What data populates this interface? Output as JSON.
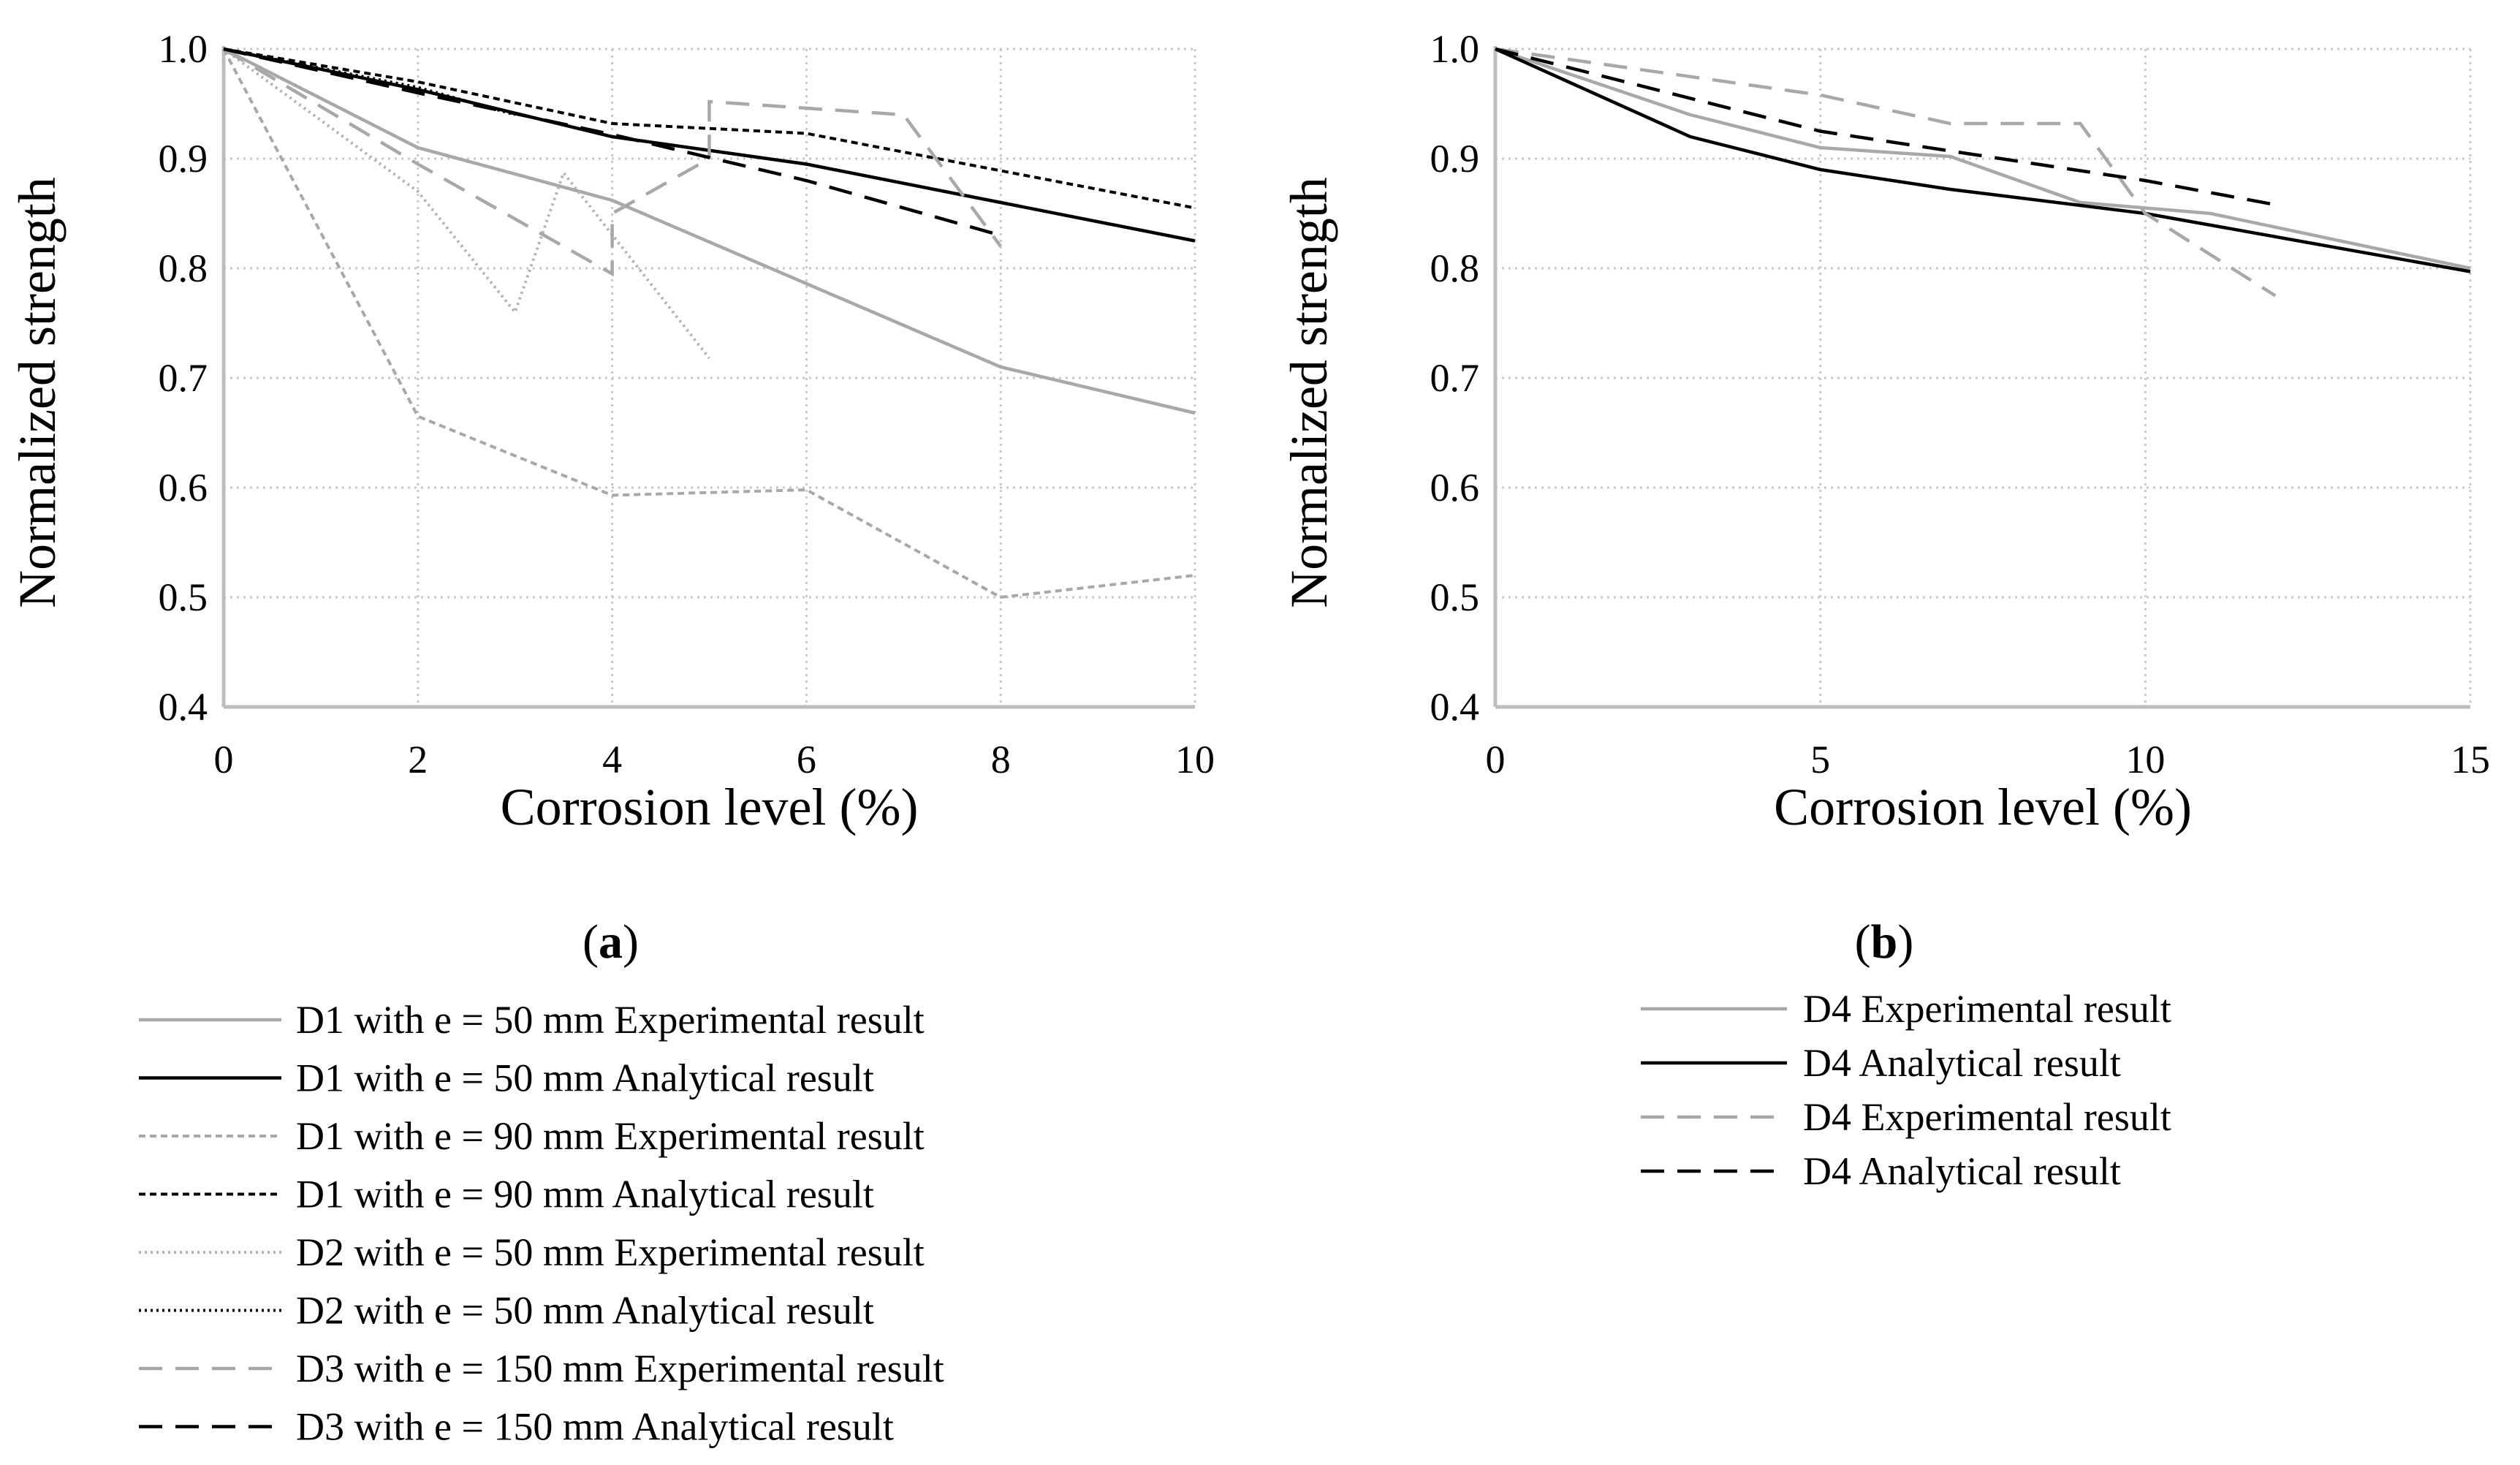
{
  "chart_data": [
    {
      "type": "line",
      "panel_label": "a",
      "xlabel": "Corrosion level (%)",
      "ylabel": "Normalized strength",
      "xlim": [
        0,
        10
      ],
      "ylim": [
        0.4,
        1.0
      ],
      "xticks": [
        "0",
        "2",
        "4",
        "6",
        "8",
        "10"
      ],
      "yticks": [
        "0.4",
        "0.5",
        "0.6",
        "0.7",
        "0.8",
        "0.9",
        "1.0"
      ],
      "grid": true,
      "legend_position": "bottom",
      "series": [
        {
          "name": "D1 with e = 50 mm Experimental result",
          "color": "#a8a8a8",
          "style": "solid",
          "x": [
            0,
            2,
            4,
            8,
            10
          ],
          "y": [
            1.0,
            0.91,
            0.862,
            0.71,
            0.668
          ]
        },
        {
          "name": "D1 with e = 50 mm Analytical result",
          "color": "#000000",
          "style": "solid",
          "x": [
            0,
            2,
            4,
            6,
            8,
            10
          ],
          "y": [
            1.0,
            0.963,
            0.92,
            0.895,
            0.86,
            0.825
          ]
        },
        {
          "name": "D1 with e = 90 mm Experimental result",
          "color": "#a8a8a8",
          "style": "short-dash",
          "x": [
            0,
            2,
            4,
            6,
            8,
            10
          ],
          "y": [
            1.0,
            0.665,
            0.593,
            0.598,
            0.5,
            0.52
          ]
        },
        {
          "name": "D1 with e = 90 mm Analytical result",
          "color": "#000000",
          "style": "short-dash",
          "x": [
            0,
            2,
            4,
            6,
            8,
            10
          ],
          "y": [
            1.0,
            0.97,
            0.932,
            0.923,
            0.889,
            0.855
          ]
        },
        {
          "name": "D2 with e = 50 mm Experimental result",
          "color": "#b4b4b4",
          "style": "dot",
          "x": [
            0,
            2,
            3,
            3.5,
            5
          ],
          "y": [
            1.0,
            0.87,
            0.76,
            0.887,
            0.718
          ]
        },
        {
          "name": "D2 with e = 50 mm Analytical result",
          "color": "#000000",
          "style": "dot",
          "x": [
            0,
            2,
            3
          ],
          "y": [
            1.0,
            0.965,
            0.94
          ]
        },
        {
          "name": "D3 with e = 150 mm Experimental result",
          "color": "#a8a8a8",
          "style": "long-dash",
          "x": [
            0,
            2,
            4,
            4,
            5,
            5,
            7,
            8
          ],
          "y": [
            1.0,
            0.895,
            0.795,
            0.85,
            0.9,
            0.952,
            0.94,
            0.82
          ]
        },
        {
          "name": "D3 with e = 150 mm Analytical result",
          "color": "#000000",
          "style": "long-dash",
          "x": [
            0,
            2,
            4,
            6,
            8
          ],
          "y": [
            1.0,
            0.96,
            0.922,
            0.88,
            0.83
          ]
        }
      ]
    },
    {
      "type": "line",
      "panel_label": "b",
      "xlabel": "Corrosion level (%)",
      "ylabel": "Normalized strength",
      "xlim": [
        0,
        15
      ],
      "ylim": [
        0.4,
        1.0
      ],
      "xticks": [
        "0",
        "5",
        "10",
        "15"
      ],
      "yticks": [
        "0.4",
        "0.5",
        "0.6",
        "0.7",
        "0.8",
        "0.9",
        "1.0"
      ],
      "grid": true,
      "legend_position": "bottom",
      "series": [
        {
          "name": "D4 Experimental result",
          "color": "#a8a8a8",
          "style": "solid",
          "x": [
            0,
            3,
            5,
            7,
            9,
            11,
            15
          ],
          "y": [
            1.0,
            0.94,
            0.91,
            0.902,
            0.86,
            0.85,
            0.8
          ]
        },
        {
          "name": "D4 Analytical result",
          "color": "#000000",
          "style": "solid",
          "x": [
            0,
            3,
            5,
            7,
            10,
            15
          ],
          "y": [
            1.0,
            0.92,
            0.89,
            0.872,
            0.85,
            0.797
          ]
        },
        {
          "name": "D4 Experimental result",
          "color": "#a8a8a8",
          "style": "long-dash",
          "x": [
            0,
            5,
            7,
            9,
            10,
            12
          ],
          "y": [
            1.0,
            0.958,
            0.932,
            0.932,
            0.85,
            0.775
          ]
        },
        {
          "name": "D4 Analytical result",
          "color": "#000000",
          "style": "long-dash",
          "x": [
            0,
            5,
            10,
            12
          ],
          "y": [
            1.0,
            0.925,
            0.88,
            0.858
          ]
        }
      ]
    }
  ]
}
